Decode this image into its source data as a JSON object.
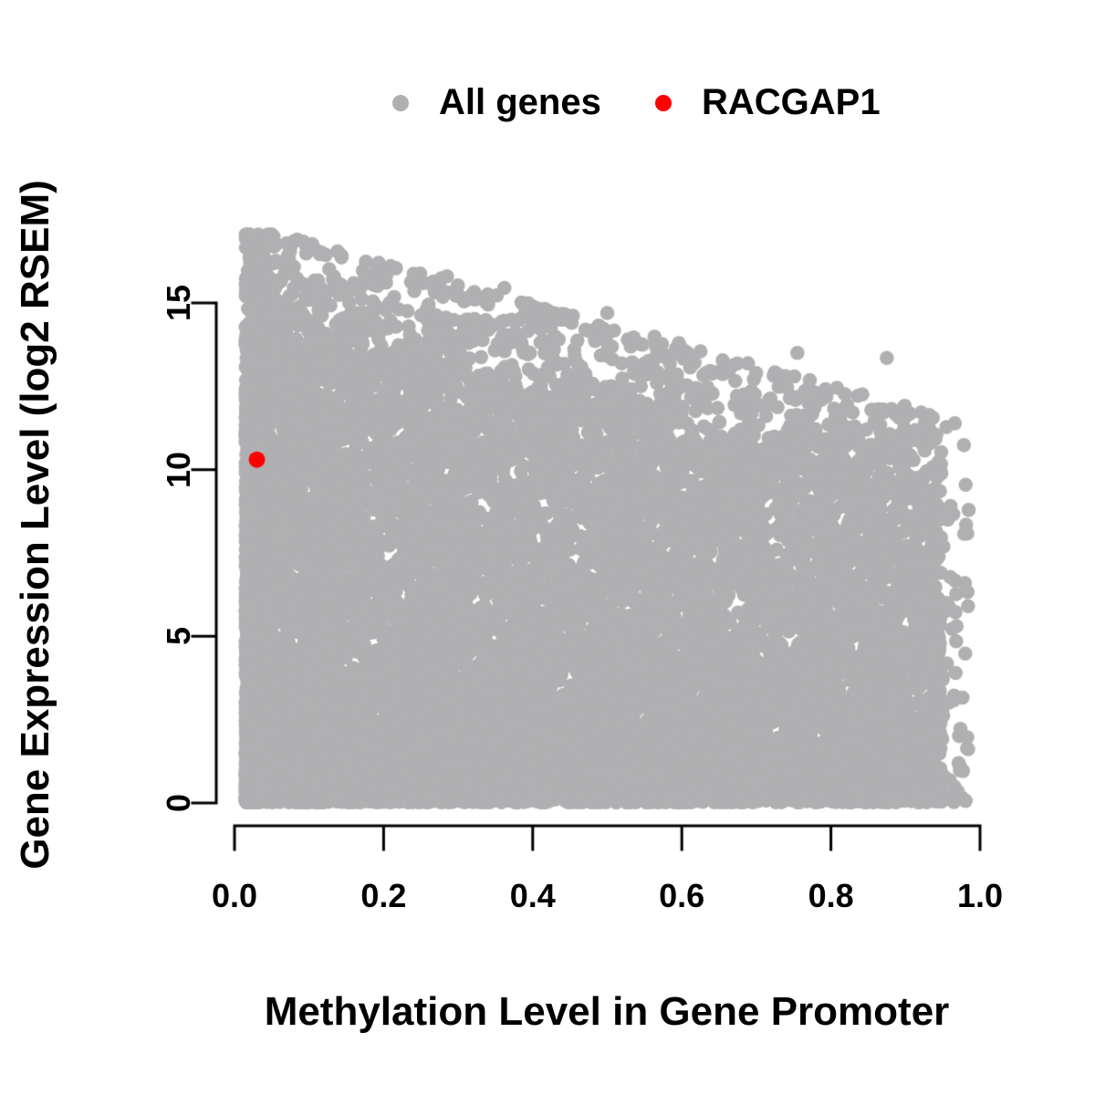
{
  "chart_data": {
    "type": "scatter",
    "title": "",
    "xlabel": "Methylation Level in Gene Promoter",
    "ylabel": "Gene Expression Level (log2 RSEM)",
    "xlim": [
      0.0,
      1.0
    ],
    "ylim": [
      0,
      17.2
    ],
    "grid": false,
    "xticks": {
      "values": [
        0.0,
        0.2,
        0.4,
        0.6,
        0.8,
        1.0
      ],
      "labels": [
        "0.0",
        "0.2",
        "0.4",
        "0.6",
        "0.8",
        "1.0"
      ]
    },
    "yticks": {
      "values": [
        0,
        5,
        10,
        15
      ],
      "labels": [
        "0",
        "5",
        "10",
        "15"
      ]
    },
    "legend": {
      "position": "top-center",
      "boxed": false,
      "entries": [
        {
          "label": "All genes",
          "color": "#B0B0B2"
        },
        {
          "label": "RACGAP1",
          "color": "#FF0000"
        }
      ]
    },
    "colors": {
      "all_genes": "#B0B0B2",
      "racgap1": "#FF0000",
      "axis": "#000000",
      "background": "#ffffff"
    },
    "series": [
      {
        "name": "All genes",
        "marker": "circle",
        "color": "#B0B0B2",
        "point_radius_px": 7.8,
        "distribution": {
          "comment": "dense wedge: expression 0..~17 at low methylation, upper envelope falling to ~11 at methylation ~0.95",
          "n_points": 13000,
          "seed": 11,
          "x_range": [
            0.015,
            0.948
          ],
          "x_left_bias_fraction": 0.34,
          "x_left_bias_power": 2.1,
          "x_outlier_fraction": 0.005,
          "x_outlier_range": [
            0.94,
            0.985
          ],
          "dense_top": {
            "intercept": 13.8,
            "slope": -5.0
          },
          "sparse_top": {
            "intercept": 17.1,
            "slope": -6.1
          },
          "bottom_fraction": 0.24,
          "bottom_mean": 1.15,
          "body_fraction": 0.655,
          "body_power": 1.12,
          "fade_fraction": 0.095,
          "fade_power": 1.7,
          "top_outlier_fraction": 0.01,
          "top_outlier_span": 0.35
        },
        "notable_points": [
          [
            0.037,
            16.95
          ],
          [
            0.073,
            16.3
          ],
          [
            0.105,
            15.35
          ],
          [
            0.285,
            15.8
          ],
          [
            0.362,
            15.45
          ],
          [
            0.44,
            14.5
          ],
          [
            0.5,
            14.7
          ],
          [
            0.565,
            13.85
          ],
          [
            0.625,
            13.55
          ],
          [
            0.755,
            13.5
          ],
          [
            0.875,
            13.35
          ],
          [
            0.955,
            6.0
          ],
          [
            0.968,
            4.85
          ]
        ]
      },
      {
        "name": "RACGAP1",
        "marker": "circle",
        "color": "#FF0000",
        "point_radius_px": 9,
        "points": [
          [
            0.03,
            10.3
          ]
        ]
      }
    ]
  }
}
